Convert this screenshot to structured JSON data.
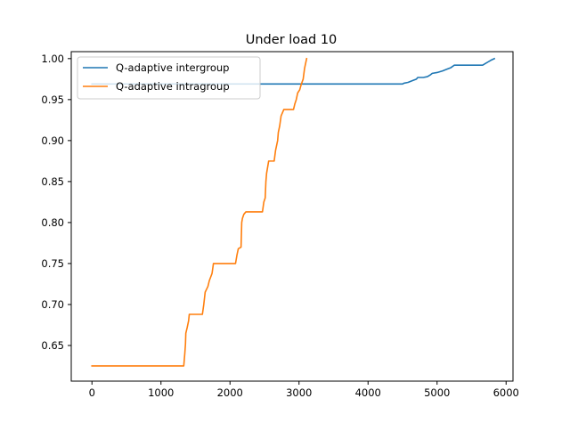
{
  "chart_data": {
    "type": "line",
    "title": "Under load 10",
    "xlabel": "",
    "ylabel": "",
    "xlim": [
      -300,
      6100
    ],
    "ylim": [
      0.6065,
      1.0085
    ],
    "x_ticks": [
      0,
      1000,
      2000,
      3000,
      4000,
      5000,
      6000
    ],
    "x_tick_labels": [
      "0",
      "1000",
      "2000",
      "3000",
      "4000",
      "5000",
      "6000"
    ],
    "y_ticks": [
      0.65,
      0.7,
      0.75,
      0.8,
      0.85,
      0.9,
      0.95,
      1.0
    ],
    "y_tick_labels": [
      "0.65",
      "0.70",
      "0.75",
      "0.80",
      "0.85",
      "0.90",
      "0.95",
      "1.00"
    ],
    "grid": false,
    "legend": {
      "position": "top-left"
    },
    "series": [
      {
        "name": "Q-adaptive intergroup",
        "color": "#1f77b4",
        "points": [
          [
            0,
            0.969
          ],
          [
            4500,
            0.969
          ],
          [
            4520,
            0.97
          ],
          [
            4580,
            0.971
          ],
          [
            4640,
            0.973
          ],
          [
            4700,
            0.975
          ],
          [
            4720,
            0.977
          ],
          [
            4800,
            0.977
          ],
          [
            4860,
            0.978
          ],
          [
            4900,
            0.98
          ],
          [
            4930,
            0.982
          ],
          [
            5000,
            0.983
          ],
          [
            5080,
            0.985
          ],
          [
            5140,
            0.987
          ],
          [
            5200,
            0.989
          ],
          [
            5250,
            0.992
          ],
          [
            5660,
            0.992
          ],
          [
            5700,
            0.994
          ],
          [
            5740,
            0.996
          ],
          [
            5780,
            0.998
          ],
          [
            5830,
            1.0
          ]
        ]
      },
      {
        "name": "Q-adaptive intragroup",
        "color": "#ff7f0e",
        "points": [
          [
            0,
            0.625
          ],
          [
            1330,
            0.625
          ],
          [
            1335,
            0.63
          ],
          [
            1345,
            0.64
          ],
          [
            1355,
            0.652
          ],
          [
            1360,
            0.665
          ],
          [
            1380,
            0.672
          ],
          [
            1400,
            0.68
          ],
          [
            1410,
            0.688
          ],
          [
            1600,
            0.688
          ],
          [
            1620,
            0.7
          ],
          [
            1640,
            0.715
          ],
          [
            1680,
            0.722
          ],
          [
            1700,
            0.729
          ],
          [
            1740,
            0.738
          ],
          [
            1760,
            0.75
          ],
          [
            2080,
            0.75
          ],
          [
            2100,
            0.76
          ],
          [
            2120,
            0.768
          ],
          [
            2160,
            0.77
          ],
          [
            2170,
            0.8
          ],
          [
            2180,
            0.805
          ],
          [
            2200,
            0.81
          ],
          [
            2230,
            0.813
          ],
          [
            2470,
            0.813
          ],
          [
            2490,
            0.825
          ],
          [
            2510,
            0.83
          ],
          [
            2520,
            0.85
          ],
          [
            2530,
            0.86
          ],
          [
            2560,
            0.875
          ],
          [
            2640,
            0.875
          ],
          [
            2660,
            0.888
          ],
          [
            2690,
            0.9
          ],
          [
            2700,
            0.91
          ],
          [
            2720,
            0.918
          ],
          [
            2740,
            0.93
          ],
          [
            2780,
            0.938
          ],
          [
            2920,
            0.938
          ],
          [
            2940,
            0.945
          ],
          [
            2960,
            0.95
          ],
          [
            2980,
            0.958
          ],
          [
            3010,
            0.962
          ],
          [
            3030,
            0.968
          ],
          [
            3060,
            0.975
          ],
          [
            3080,
            0.988
          ],
          [
            3090,
            0.992
          ],
          [
            3110,
            1.0
          ]
        ]
      }
    ]
  }
}
